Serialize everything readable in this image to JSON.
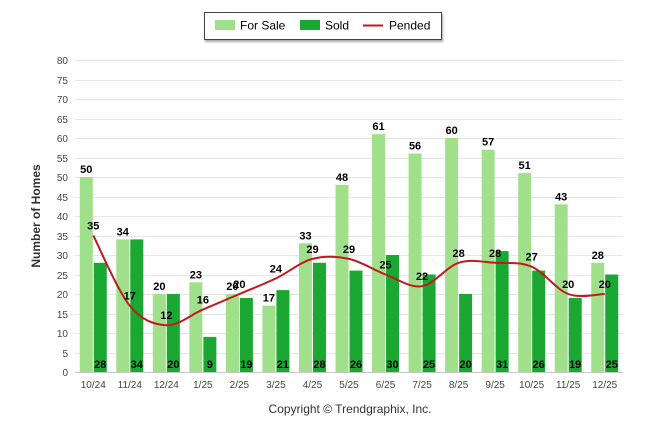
{
  "chart_data": {
    "type": "bar",
    "categories": [
      "10/24",
      "11/24",
      "12/24",
      "1/25",
      "2/25",
      "3/25",
      "4/25",
      "5/25",
      "6/25",
      "7/25",
      "8/25",
      "9/25",
      "10/25",
      "11/25",
      "12/25"
    ],
    "series": [
      {
        "name": "For Sale",
        "type": "bar",
        "color": "#a0e08b",
        "values": [
          50,
          34,
          20,
          23,
          20,
          17,
          33,
          48,
          61,
          56,
          60,
          57,
          51,
          43,
          28
        ]
      },
      {
        "name": "Sold",
        "type": "bar",
        "color": "#1aa832",
        "values": [
          28,
          34,
          20,
          9,
          19,
          21,
          28,
          26,
          30,
          25,
          20,
          31,
          26,
          19,
          25
        ]
      },
      {
        "name": "Pended",
        "type": "line",
        "color": "#c0191f",
        "values": [
          35,
          17,
          12,
          16,
          20,
          24,
          29,
          29,
          25,
          22,
          28,
          28,
          27,
          20,
          20
        ]
      }
    ],
    "ylabel": "Number of Homes",
    "xlabel": "",
    "ylim": [
      0,
      80
    ],
    "yticks": [
      0,
      5,
      10,
      15,
      20,
      25,
      30,
      35,
      40,
      45,
      50,
      55,
      60,
      65,
      70,
      75,
      80
    ],
    "grid": true,
    "legend": "top-center"
  },
  "footer": {
    "copyright": "Copyright © Trendgraphix, Inc."
  }
}
